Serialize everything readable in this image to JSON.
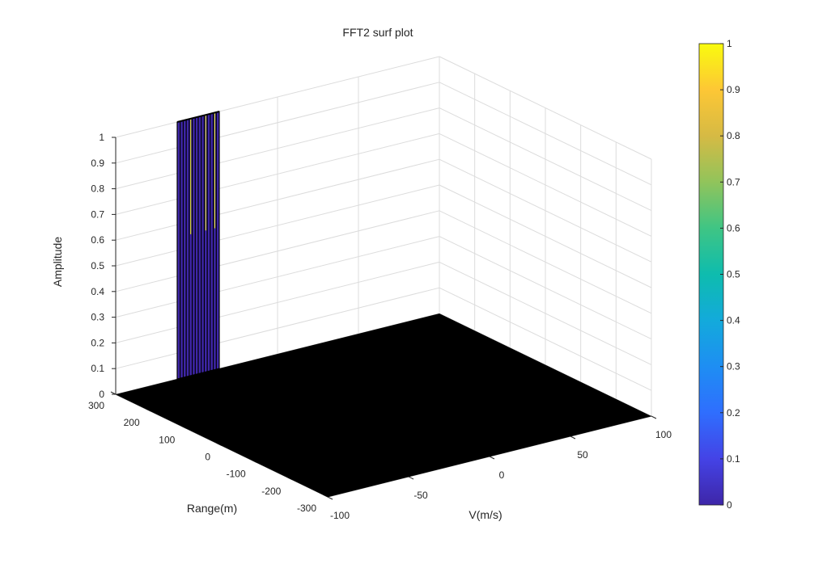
{
  "chart_data": {
    "type": "surface",
    "title": "FFT2 surf plot",
    "xlabel": "V(m/s)",
    "ylabel": "Range(m)",
    "zlabel": "Amplitude",
    "xlim": [
      -100,
      100
    ],
    "ylim": [
      -300,
      300
    ],
    "zlim": [
      0,
      1
    ],
    "xticks": [
      "-100",
      "-50",
      "0",
      "50",
      "100"
    ],
    "yticks": [
      "-300",
      "-200",
      "-100",
      "0",
      "100",
      "200",
      "300"
    ],
    "zticks": [
      "0",
      "0.1",
      "0.2",
      "0.3",
      "0.4",
      "0.5",
      "0.6",
      "0.7",
      "0.8",
      "0.9",
      "1"
    ],
    "grid": true,
    "colorbar": {
      "position": "right",
      "colormap": "parula",
      "ticks": [
        "0",
        "0.1",
        "0.2",
        "0.3",
        "0.4",
        "0.5",
        "0.6",
        "0.7",
        "0.8",
        "0.9",
        "1"
      ]
    },
    "floor": {
      "z": 0,
      "color": "#000000"
    },
    "peak": {
      "v_range": [
        -62,
        -36
      ],
      "range_value": 300,
      "amplitude": 1,
      "edge_color": "#000000",
      "low_color": "#3e26a8",
      "high_color": "#f9fb0e"
    }
  }
}
